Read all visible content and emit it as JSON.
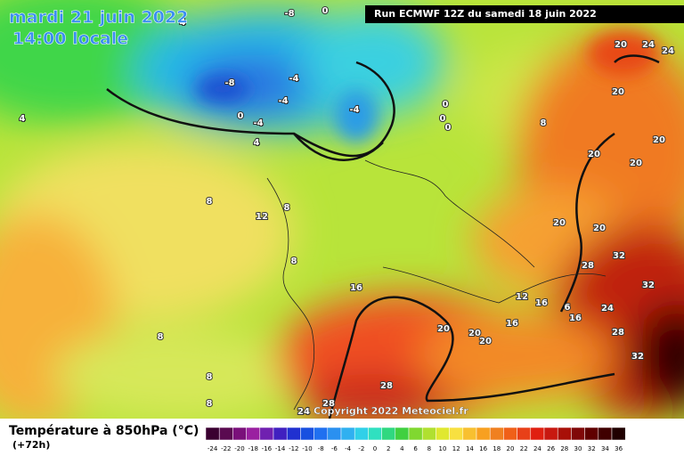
{
  "header": {
    "date": "mardi 21 juin 2022",
    "time": "14:00 locale",
    "run": "Run ECMWF 12Z du samedi 18 juin 2022"
  },
  "map": {
    "contour_labels": [
      "4",
      "-8",
      "0",
      "-8",
      "-4",
      "-4",
      "-4",
      "0",
      "-4",
      "4",
      "4",
      "0",
      "0",
      "0",
      "8",
      "8",
      "12",
      "8",
      "8",
      "16",
      "8",
      "8",
      "8",
      "20",
      "24",
      "24",
      "20",
      "20",
      "20",
      "20",
      "20",
      "20",
      "32",
      "28",
      "32",
      "12",
      "16",
      "6",
      "24",
      "16",
      "16",
      "20",
      "20",
      "20",
      "28",
      "32",
      "28",
      "28",
      "24"
    ]
  },
  "footer": {
    "title": "Température à 850hPa (°C)",
    "lead": "(+72h)",
    "copyright": "Copyright 2022 Meteociel.fr"
  },
  "legend": {
    "labels": [
      -24,
      -22,
      -20,
      -18,
      -16,
      -14,
      -12,
      -10,
      -8,
      -6,
      -4,
      -2,
      0,
      2,
      4,
      6,
      8,
      10,
      12,
      14,
      16,
      18,
      20,
      22,
      24,
      26,
      28,
      30,
      32,
      34,
      36
    ]
  }
}
